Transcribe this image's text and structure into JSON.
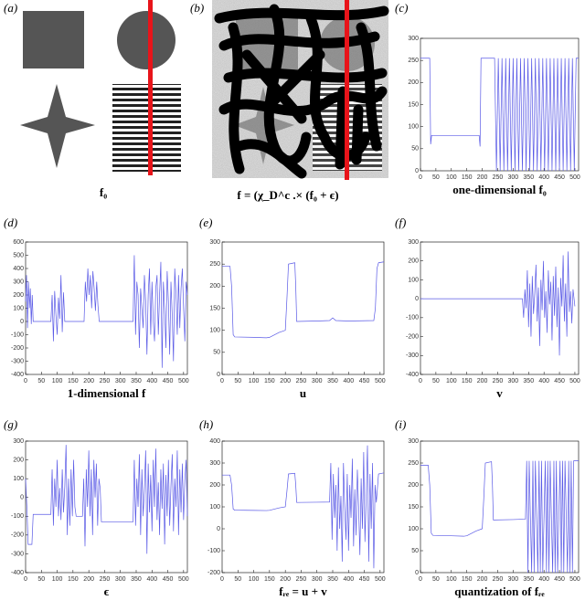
{
  "images": [
    {
      "label": "(a)",
      "caption": "f₀"
    },
    {
      "label": "(b)",
      "caption": "f = (χ_D^c .× (f₀ + ϵ)"
    }
  ],
  "chart_data": [
    {
      "type": "line",
      "label": "(c)",
      "xlabel": "one-dimensional f₀",
      "color": "#5a5ae6",
      "xlim": [
        0,
        512
      ],
      "xticks": [
        0,
        50,
        100,
        150,
        200,
        250,
        300,
        350,
        400,
        450,
        500
      ],
      "ylim": [
        0,
        300
      ],
      "yticks": [
        0,
        50,
        100,
        150,
        200,
        250,
        300
      ],
      "x": [
        0,
        30,
        33,
        36,
        40,
        190,
        193,
        196,
        200,
        236,
        240,
        246,
        252,
        258,
        264,
        270,
        276,
        282,
        288,
        294,
        300,
        306,
        312,
        318,
        324,
        330,
        336,
        342,
        348,
        354,
        360,
        366,
        372,
        378,
        384,
        390,
        396,
        402,
        408,
        414,
        420,
        426,
        432,
        438,
        444,
        450,
        456,
        462,
        468,
        474,
        480,
        486,
        492,
        498,
        504,
        512
      ],
      "values": [
        255,
        255,
        60,
        80,
        80,
        80,
        55,
        255,
        255,
        255,
        255,
        0,
        255,
        0,
        255,
        0,
        255,
        0,
        255,
        0,
        255,
        0,
        255,
        0,
        255,
        0,
        255,
        0,
        255,
        0,
        255,
        0,
        255,
        0,
        255,
        0,
        255,
        0,
        255,
        0,
        255,
        0,
        255,
        0,
        255,
        0,
        255,
        0,
        255,
        0,
        255,
        0,
        255,
        0,
        255,
        255
      ]
    },
    {
      "type": "line",
      "label": "(d)",
      "xlabel": "1-dimensional f",
      "color": "#5a5ae6",
      "xlim": [
        0,
        512
      ],
      "xticks": [
        0,
        50,
        100,
        150,
        200,
        250,
        300,
        350,
        400,
        450,
        500
      ],
      "ylim": [
        -400,
        600
      ],
      "yticks": [
        -400,
        -300,
        -200,
        -100,
        0,
        100,
        200,
        300,
        400,
        500,
        600
      ],
      "x": [
        0,
        3,
        6,
        9,
        12,
        15,
        18,
        21,
        24,
        80,
        84,
        88,
        92,
        96,
        100,
        104,
        108,
        112,
        116,
        120,
        124,
        185,
        189,
        193,
        197,
        201,
        205,
        209,
        213,
        217,
        221,
        225,
        229,
        233,
        340,
        344,
        348,
        352,
        356,
        360,
        364,
        368,
        372,
        376,
        380,
        384,
        388,
        392,
        396,
        400,
        404,
        408,
        412,
        416,
        420,
        424,
        428,
        432,
        436,
        440,
        444,
        448,
        452,
        456,
        460,
        464,
        468,
        472,
        476,
        480,
        484,
        488,
        492,
        496,
        500,
        504,
        508,
        512
      ],
      "values": [
        150,
        350,
        -50,
        300,
        100,
        250,
        -20,
        200,
        0,
        0,
        200,
        -150,
        230,
        50,
        -100,
        180,
        20,
        350,
        -80,
        220,
        0,
        0,
        300,
        150,
        400,
        200,
        350,
        100,
        380,
        250,
        80,
        300,
        120,
        0,
        0,
        500,
        -100,
        300,
        200,
        -200,
        250,
        100,
        -50,
        350,
        150,
        -250,
        200,
        400,
        -100,
        300,
        0,
        -150,
        250,
        350,
        -100,
        200,
        450,
        -350,
        300,
        100,
        -200,
        380,
        150,
        -250,
        300,
        50,
        -300,
        400,
        200,
        -100,
        350,
        -50,
        250,
        400,
        100,
        -150,
        300,
        200
      ]
    },
    {
      "type": "line",
      "label": "(e)",
      "xlabel": "u",
      "color": "#5a5ae6",
      "xlim": [
        0,
        512
      ],
      "xticks": [
        0,
        50,
        100,
        150,
        200,
        250,
        300,
        350,
        400,
        450,
        500
      ],
      "ylim": [
        0,
        300
      ],
      "yticks": [
        0,
        50,
        100,
        150,
        200,
        250,
        300
      ],
      "x": [
        0,
        25,
        30,
        35,
        40,
        100,
        140,
        150,
        180,
        200,
        205,
        210,
        230,
        233,
        236,
        300,
        340,
        350,
        360,
        400,
        480,
        485,
        490,
        495,
        512
      ],
      "values": [
        245,
        245,
        200,
        90,
        85,
        84,
        83,
        84,
        95,
        100,
        170,
        250,
        253,
        200,
        120,
        121,
        122,
        128,
        122,
        121,
        122,
        150,
        240,
        253,
        255
      ]
    },
    {
      "type": "line",
      "label": "(f)",
      "xlabel": "v",
      "color": "#5a5ae6",
      "xlim": [
        0,
        512
      ],
      "xticks": [
        0,
        50,
        100,
        150,
        200,
        250,
        300,
        350,
        400,
        450,
        500
      ],
      "ylim": [
        -400,
        300
      ],
      "yticks": [
        -400,
        -300,
        -200,
        -100,
        0,
        100,
        200,
        300
      ],
      "x": [
        0,
        330,
        334,
        338,
        342,
        346,
        350,
        354,
        358,
        362,
        366,
        370,
        374,
        378,
        382,
        386,
        390,
        394,
        398,
        402,
        406,
        410,
        414,
        418,
        422,
        426,
        430,
        434,
        438,
        442,
        446,
        450,
        454,
        458,
        462,
        466,
        470,
        474,
        478,
        482,
        486,
        490,
        494,
        500
      ],
      "values": [
        0,
        0,
        -100,
        50,
        -50,
        150,
        -150,
        80,
        -200,
        120,
        -80,
        30,
        180,
        -120,
        60,
        -250,
        100,
        -60,
        200,
        -100,
        40,
        -180,
        150,
        -30,
        90,
        -220,
        120,
        -90,
        170,
        -150,
        60,
        -300,
        110,
        -40,
        230,
        -120,
        80,
        -200,
        250,
        -70,
        40,
        -130,
        50,
        -40
      ]
    },
    {
      "type": "line",
      "label": "(g)",
      "xlabel": "ϵ",
      "color": "#5a5ae6",
      "xlim": [
        0,
        512
      ],
      "xticks": [
        0,
        50,
        100,
        150,
        200,
        250,
        300,
        350,
        400,
        450,
        500
      ],
      "ylim": [
        -400,
        300
      ],
      "yticks": [
        -400,
        -300,
        -200,
        -100,
        0,
        100,
        200,
        300
      ],
      "x": [
        0,
        4,
        8,
        12,
        16,
        20,
        24,
        28,
        80,
        84,
        88,
        92,
        96,
        100,
        104,
        108,
        112,
        116,
        120,
        124,
        128,
        132,
        136,
        140,
        144,
        148,
        152,
        156,
        160,
        180,
        184,
        188,
        192,
        196,
        200,
        204,
        208,
        212,
        216,
        220,
        224,
        228,
        232,
        236,
        240,
        340,
        344,
        348,
        352,
        356,
        360,
        364,
        368,
        372,
        376,
        380,
        384,
        388,
        392,
        396,
        400,
        404,
        408,
        412,
        416,
        420,
        424,
        428,
        432,
        436,
        440,
        444,
        448,
        452,
        456,
        460,
        464,
        468,
        472,
        476,
        480,
        484,
        488,
        492,
        496,
        500,
        504,
        508,
        512
      ],
      "values": [
        100,
        -50,
        -250,
        -250,
        -250,
        -250,
        -90,
        -90,
        -90,
        150,
        -150,
        100,
        -50,
        200,
        -100,
        50,
        -120,
        150,
        -80,
        60,
        280,
        -200,
        100,
        -150,
        150,
        -100,
        200,
        -50,
        -100,
        -100,
        100,
        -260,
        150,
        -50,
        250,
        -100,
        150,
        -200,
        200,
        0,
        180,
        -150,
        100,
        50,
        -130,
        -130,
        200,
        -150,
        100,
        -50,
        230,
        -200,
        150,
        -100,
        50,
        250,
        -300,
        180,
        -80,
        120,
        -180,
        200,
        -50,
        260,
        -120,
        80,
        -200,
        150,
        -60,
        180,
        -250,
        120,
        -100,
        200,
        -150,
        60,
        230,
        -180,
        100,
        -50,
        250,
        -200,
        150,
        -80,
        180,
        -120,
        90,
        200,
        -100
      ]
    },
    {
      "type": "line",
      "label": "(h)",
      "xlabel": "fᵣₑ = u + v",
      "color": "#5a5ae6",
      "xlim": [
        0,
        512
      ],
      "xticks": [
        0,
        50,
        100,
        150,
        200,
        250,
        300,
        350,
        400,
        450,
        500
      ],
      "ylim": [
        -200,
        400
      ],
      "yticks": [
        -200,
        -100,
        0,
        100,
        200,
        300,
        400
      ],
      "x": [
        0,
        25,
        30,
        35,
        40,
        100,
        140,
        150,
        180,
        200,
        205,
        210,
        230,
        233,
        236,
        300,
        340,
        344,
        348,
        352,
        356,
        360,
        364,
        368,
        372,
        376,
        380,
        384,
        388,
        392,
        396,
        400,
        404,
        408,
        412,
        416,
        420,
        424,
        428,
        432,
        436,
        440,
        444,
        448,
        452,
        456,
        460,
        464,
        468,
        472,
        476,
        480,
        484,
        488,
        495,
        512
      ],
      "values": [
        245,
        245,
        200,
        90,
        85,
        84,
        83,
        84,
        95,
        100,
        170,
        250,
        253,
        200,
        120,
        121,
        122,
        300,
        -50,
        250,
        50,
        200,
        -100,
        280,
        0,
        150,
        -150,
        300,
        100,
        -50,
        250,
        -100,
        200,
        50,
        320,
        -80,
        180,
        -30,
        270,
        100,
        -120,
        230,
        0,
        350,
        -60,
        150,
        380,
        -150,
        250,
        0,
        300,
        -180,
        200,
        120,
        250,
        255
      ]
    },
    {
      "type": "line",
      "label": "(i)",
      "xlabel": "quantization of fᵣₑ",
      "color": "#5a5ae6",
      "xlim": [
        0,
        512
      ],
      "xticks": [
        0,
        50,
        100,
        150,
        200,
        250,
        300,
        350,
        400,
        450,
        500
      ],
      "ylim": [
        0,
        300
      ],
      "yticks": [
        0,
        50,
        100,
        150,
        200,
        250,
        300
      ],
      "x": [
        0,
        25,
        30,
        35,
        40,
        100,
        140,
        150,
        180,
        200,
        205,
        210,
        230,
        233,
        236,
        300,
        340,
        344,
        348,
        352,
        356,
        360,
        364,
        368,
        372,
        376,
        380,
        384,
        388,
        392,
        396,
        400,
        404,
        408,
        412,
        416,
        420,
        424,
        428,
        432,
        436,
        440,
        444,
        448,
        452,
        456,
        460,
        464,
        468,
        472,
        476,
        480,
        484,
        488,
        492,
        496,
        500,
        512
      ],
      "values": [
        245,
        245,
        200,
        90,
        85,
        84,
        83,
        84,
        95,
        100,
        170,
        250,
        253,
        200,
        120,
        121,
        122,
        255,
        0,
        255,
        125,
        0,
        255,
        0,
        255,
        125,
        0,
        255,
        0,
        255,
        0,
        125,
        255,
        0,
        255,
        0,
        255,
        125,
        0,
        255,
        0,
        255,
        0,
        125,
        255,
        0,
        255,
        0,
        255,
        125,
        0,
        255,
        0,
        255,
        0,
        255,
        255,
        255
      ]
    }
  ]
}
